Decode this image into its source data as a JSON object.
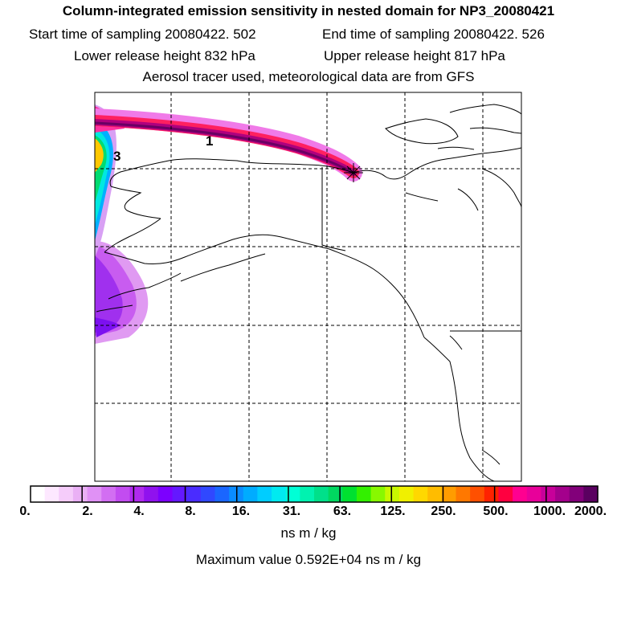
{
  "header": {
    "title": "Column-integrated emission sensitivity in nested domain for NP3_20080421",
    "start_label": "Start time of sampling 20080422.   502",
    "end_label": "End time of sampling 20080422.   526",
    "lower_label": "Lower release height  832 hPa",
    "upper_label": "Upper release height  817 hPa",
    "info": "Aerosol tracer used, meteorological data are from GFS"
  },
  "map": {
    "labels": [
      {
        "text": "1"
      },
      {
        "text": "3"
      }
    ],
    "release_marker": "release-point-star"
  },
  "colorbar": {
    "tick_labels": [
      "0.",
      "2.",
      "4.",
      "8.",
      "16.",
      "31.",
      "63.",
      "125.",
      "250.",
      "500.",
      "1000.",
      "2000."
    ],
    "colors": [
      "#ffffff",
      "#fde8ff",
      "#f5ccfa",
      "#eab0f5",
      "#e091f5",
      "#d26ef2",
      "#c24cf0",
      "#b02aee",
      "#9012ee",
      "#7c00ff",
      "#6418ff",
      "#4a2cff",
      "#3048ff",
      "#1a66ff",
      "#0a8cff",
      "#00acff",
      "#00cdff",
      "#00eaf0",
      "#00ffd6",
      "#00f2b0",
      "#00e08a",
      "#00d860",
      "#00e030",
      "#33f000",
      "#88f800",
      "#c8f800",
      "#f0f000",
      "#ffd800",
      "#ffbc00",
      "#ff9c00",
      "#ff7800",
      "#ff5000",
      "#ff2200",
      "#ff0040",
      "#ff0090",
      "#e8009a",
      "#c8009a",
      "#a4008c",
      "#82007a",
      "#5a0060"
    ],
    "units": "ns m / kg",
    "max_value": "Maximum value  0.592E+04 ns m / kg"
  }
}
